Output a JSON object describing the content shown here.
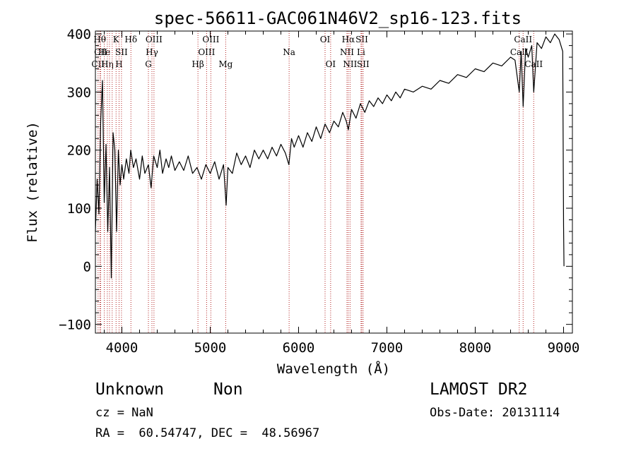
{
  "chart_data": {
    "type": "line",
    "title": "spec-56611-GAC061N46V2_sp16-123.fits",
    "xlabel": "Wavelength (Å)",
    "ylabel": "Flux (relative)",
    "xlim": [
      3700,
      9100
    ],
    "ylim": [
      -115,
      405
    ],
    "xticks": [
      4000,
      5000,
      6000,
      7000,
      8000,
      9000
    ],
    "yticks": [
      -100,
      0,
      100,
      200,
      300,
      400
    ],
    "grid": false,
    "series": [
      {
        "color": "#000000",
        "points": [
          [
            3700,
            60
          ],
          [
            3720,
            150
          ],
          [
            3740,
            90
          ],
          [
            3760,
            250
          ],
          [
            3780,
            320
          ],
          [
            3800,
            110
          ],
          [
            3820,
            210
          ],
          [
            3840,
            60
          ],
          [
            3860,
            170
          ],
          [
            3880,
            -20
          ],
          [
            3900,
            230
          ],
          [
            3920,
            200
          ],
          [
            3940,
            60
          ],
          [
            3960,
            200
          ],
          [
            3980,
            140
          ],
          [
            4000,
            175
          ],
          [
            4020,
            150
          ],
          [
            4050,
            185
          ],
          [
            4080,
            160
          ],
          [
            4100,
            200
          ],
          [
            4130,
            170
          ],
          [
            4160,
            185
          ],
          [
            4200,
            150
          ],
          [
            4230,
            190
          ],
          [
            4260,
            160
          ],
          [
            4300,
            175
          ],
          [
            4330,
            135
          ],
          [
            4360,
            190
          ],
          [
            4400,
            170
          ],
          [
            4430,
            200
          ],
          [
            4460,
            160
          ],
          [
            4500,
            185
          ],
          [
            4530,
            170
          ],
          [
            4560,
            190
          ],
          [
            4600,
            165
          ],
          [
            4650,
            180
          ],
          [
            4700,
            165
          ],
          [
            4750,
            190
          ],
          [
            4800,
            160
          ],
          [
            4850,
            170
          ],
          [
            4900,
            150
          ],
          [
            4950,
            175
          ],
          [
            5000,
            160
          ],
          [
            5050,
            180
          ],
          [
            5100,
            150
          ],
          [
            5150,
            175
          ],
          [
            5180,
            105
          ],
          [
            5200,
            170
          ],
          [
            5250,
            160
          ],
          [
            5300,
            195
          ],
          [
            5350,
            175
          ],
          [
            5400,
            190
          ],
          [
            5450,
            170
          ],
          [
            5500,
            200
          ],
          [
            5550,
            185
          ],
          [
            5600,
            200
          ],
          [
            5650,
            185
          ],
          [
            5700,
            205
          ],
          [
            5750,
            190
          ],
          [
            5800,
            210
          ],
          [
            5850,
            195
          ],
          [
            5890,
            175
          ],
          [
            5920,
            220
          ],
          [
            5950,
            205
          ],
          [
            6000,
            225
          ],
          [
            6050,
            205
          ],
          [
            6100,
            230
          ],
          [
            6150,
            215
          ],
          [
            6200,
            240
          ],
          [
            6250,
            220
          ],
          [
            6300,
            245
          ],
          [
            6350,
            230
          ],
          [
            6400,
            250
          ],
          [
            6450,
            240
          ],
          [
            6500,
            265
          ],
          [
            6540,
            250
          ],
          [
            6563,
            235
          ],
          [
            6600,
            270
          ],
          [
            6650,
            255
          ],
          [
            6700,
            280
          ],
          [
            6750,
            265
          ],
          [
            6800,
            285
          ],
          [
            6850,
            275
          ],
          [
            6900,
            290
          ],
          [
            6950,
            280
          ],
          [
            7000,
            295
          ],
          [
            7050,
            285
          ],
          [
            7100,
            300
          ],
          [
            7150,
            290
          ],
          [
            7200,
            305
          ],
          [
            7300,
            300
          ],
          [
            7400,
            310
          ],
          [
            7500,
            305
          ],
          [
            7600,
            320
          ],
          [
            7700,
            315
          ],
          [
            7800,
            330
          ],
          [
            7900,
            325
          ],
          [
            8000,
            340
          ],
          [
            8100,
            335
          ],
          [
            8200,
            350
          ],
          [
            8300,
            345
          ],
          [
            8400,
            360
          ],
          [
            8450,
            355
          ],
          [
            8498,
            300
          ],
          [
            8520,
            370
          ],
          [
            8542,
            275
          ],
          [
            8570,
            375
          ],
          [
            8600,
            360
          ],
          [
            8640,
            380
          ],
          [
            8662,
            300
          ],
          [
            8700,
            385
          ],
          [
            8750,
            375
          ],
          [
            8800,
            395
          ],
          [
            8850,
            385
          ],
          [
            8900,
            400
          ],
          [
            8950,
            390
          ],
          [
            8990,
            370
          ],
          [
            9000,
            70
          ],
          [
            9005,
            0
          ]
        ]
      }
    ],
    "lines": [
      {
        "x": 3730,
        "label": "CII",
        "row": 2
      },
      {
        "x": 3750,
        "label": "Hθ",
        "row": 0
      },
      {
        "x": 3760,
        "label": "CII",
        "row": 1
      },
      {
        "x": 3800,
        "label": "He",
        "row": 1
      },
      {
        "x": 3835,
        "label": "Hη",
        "row": 2
      },
      {
        "x": 3860,
        "label": "",
        "row": 0
      },
      {
        "x": 3890,
        "label": "",
        "row": 0
      },
      {
        "x": 3934,
        "label": "K",
        "row": 0
      },
      {
        "x": 3968,
        "label": "H",
        "row": 2
      },
      {
        "x": 3995,
        "label": "SII",
        "row": 1
      },
      {
        "x": 4102,
        "label": "Hδ",
        "row": 0
      },
      {
        "x": 4300,
        "label": "G",
        "row": 2
      },
      {
        "x": 4340,
        "label": "Hγ",
        "row": 1
      },
      {
        "x": 4363,
        "label": "OIII",
        "row": 0
      },
      {
        "x": 4861,
        "label": "Hβ",
        "row": 2
      },
      {
        "x": 4959,
        "label": "OIII",
        "row": 1
      },
      {
        "x": 5007,
        "label": "OIII",
        "row": 0
      },
      {
        "x": 5175,
        "label": "Mg",
        "row": 2
      },
      {
        "x": 5893,
        "label": "Na",
        "row": 1
      },
      {
        "x": 6300,
        "label": "OI",
        "row": 0
      },
      {
        "x": 6363,
        "label": "OI",
        "row": 2
      },
      {
        "x": 6548,
        "label": "NII",
        "row": 1
      },
      {
        "x": 6563,
        "label": "Hα",
        "row": 0
      },
      {
        "x": 6583,
        "label": "NII",
        "row": 2
      },
      {
        "x": 6707,
        "label": "Li",
        "row": 1
      },
      {
        "x": 6716,
        "label": "SII",
        "row": 0
      },
      {
        "x": 6731,
        "label": "SII",
        "row": 2
      },
      {
        "x": 8498,
        "label": "CaII",
        "row": 1
      },
      {
        "x": 8542,
        "label": "CaII",
        "row": 0
      },
      {
        "x": 8662,
        "label": "CaII",
        "row": 2
      }
    ]
  },
  "footer": {
    "object_class": "Unknown",
    "object_subclass": "Non",
    "survey": "LAMOST DR2",
    "cz": "cz = NaN",
    "obs_date": "Obs-Date: 20131114",
    "coords": "RA =  60.54747, DEC =  48.56967"
  }
}
